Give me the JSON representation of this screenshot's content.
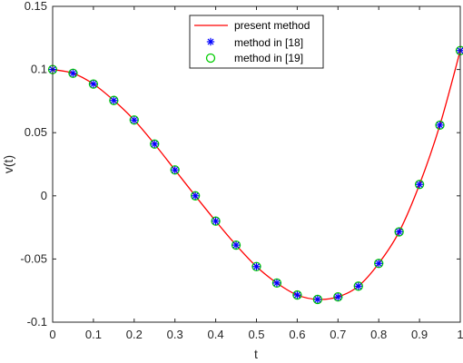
{
  "chart_data": {
    "type": "line",
    "title": "",
    "xlabel": "t",
    "ylabel": "v(t)",
    "xlim": [
      0,
      1
    ],
    "ylim": [
      -0.1,
      0.15
    ],
    "x_ticks": [
      "0",
      "0.1",
      "0.2",
      "0.3",
      "0.4",
      "0.5",
      "0.6",
      "0.7",
      "0.8",
      "0.9",
      "1"
    ],
    "y_ticks": [
      "-0.1",
      "-0.05",
      "0",
      "0.05",
      "0.1",
      "0.15"
    ],
    "grid": false,
    "legend_position": "top-center",
    "series": [
      {
        "name": "present method",
        "style": "line",
        "color": "#ff0000",
        "x": [
          0,
          0.05,
          0.1,
          0.15,
          0.2,
          0.25,
          0.3,
          0.35,
          0.4,
          0.45,
          0.5,
          0.55,
          0.6,
          0.65,
          0.7,
          0.75,
          0.8,
          0.85,
          0.9,
          0.95,
          1
        ],
        "y": [
          0.1,
          0.097,
          0.0885,
          0.0755,
          0.06,
          0.041,
          0.0205,
          0.0,
          -0.02,
          -0.039,
          -0.056,
          -0.069,
          -0.0785,
          -0.082,
          -0.08,
          -0.0715,
          -0.0535,
          -0.0285,
          0.009,
          0.056,
          0.115
        ]
      },
      {
        "name": "method in [18]",
        "style": "asterisk",
        "color": "#0000ff",
        "x": [
          0,
          0.05,
          0.1,
          0.15,
          0.2,
          0.25,
          0.3,
          0.35,
          0.4,
          0.45,
          0.5,
          0.55,
          0.6,
          0.65,
          0.7,
          0.75,
          0.8,
          0.85,
          0.9,
          0.95,
          1
        ],
        "y": [
          0.1,
          0.097,
          0.0885,
          0.0755,
          0.06,
          0.041,
          0.0205,
          0.0,
          -0.02,
          -0.039,
          -0.056,
          -0.069,
          -0.0785,
          -0.082,
          -0.08,
          -0.0715,
          -0.0535,
          -0.0285,
          0.009,
          0.056,
          0.115
        ]
      },
      {
        "name": "method in [19]",
        "style": "circle",
        "color": "#00cc00",
        "x": [
          0,
          0.05,
          0.1,
          0.15,
          0.2,
          0.25,
          0.3,
          0.35,
          0.4,
          0.45,
          0.5,
          0.55,
          0.6,
          0.65,
          0.7,
          0.75,
          0.8,
          0.85,
          0.9,
          0.95,
          1
        ],
        "y": [
          0.1,
          0.097,
          0.0885,
          0.0755,
          0.06,
          0.041,
          0.0205,
          0.0,
          -0.02,
          -0.039,
          -0.056,
          -0.069,
          -0.0785,
          -0.082,
          -0.08,
          -0.0715,
          -0.0535,
          -0.0285,
          0.009,
          0.056,
          0.115
        ]
      }
    ]
  }
}
